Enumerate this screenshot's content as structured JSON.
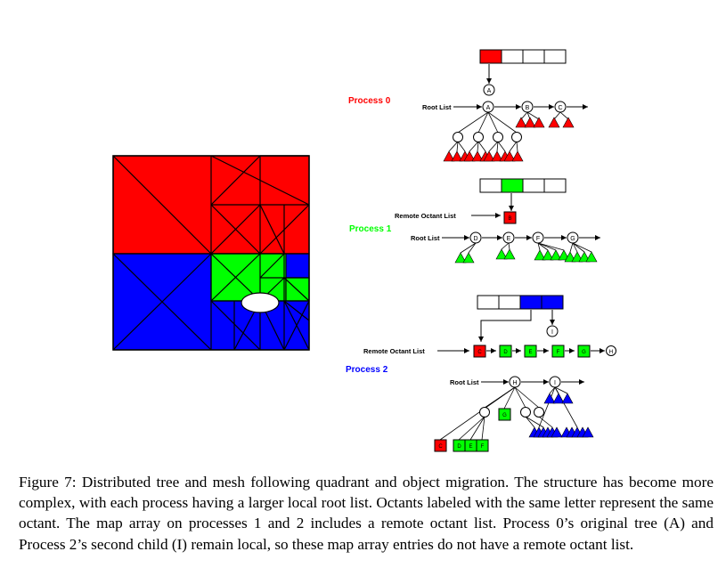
{
  "colors": {
    "process0": "#ff0000",
    "process1": "#00ff00",
    "process2": "#0000ff",
    "line": "#000000",
    "background": "#ffffff"
  },
  "process_labels": {
    "p0": "Process 0",
    "p1": "Process 1",
    "p2": "Process 2"
  },
  "list_labels": {
    "root_list": "Root List",
    "remote_octant_list": "Remote Octant List"
  },
  "octant_labels": {
    "A": "A",
    "B": "B",
    "C": "C",
    "D": "D",
    "E": "E",
    "F": "F",
    "G": "G",
    "H": "H",
    "I": "I"
  },
  "caption": "Figure 7: Distributed tree and mesh following quadrant and object migration. The structure has become more complex, with each process having a larger local root list. Octants labeled with the same letter represent the same octant. The map array on processes 1 and 2 includes a remote octant list. Process 0’s original tree (A) and Process 2’s second child (I) remain local, so these map array entries do not have a remote octant list."
}
